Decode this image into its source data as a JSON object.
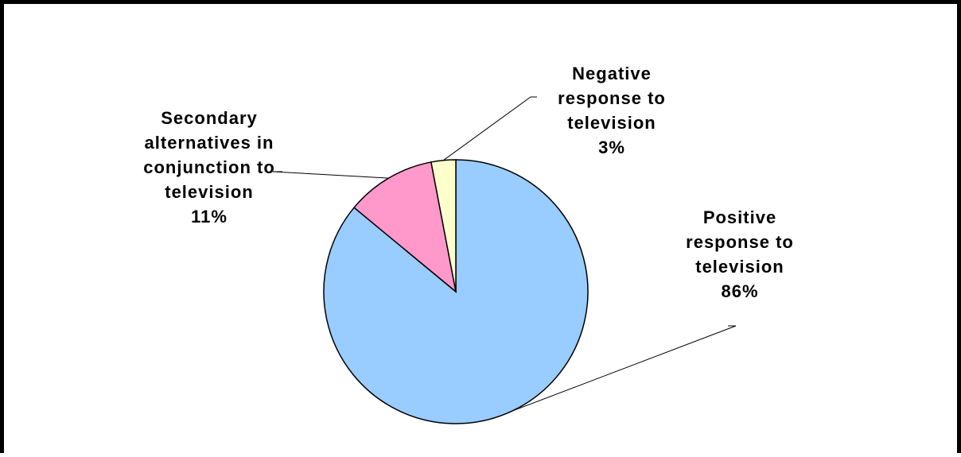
{
  "chart_data": {
    "type": "pie",
    "title": "",
    "slices": [
      {
        "label_lines": [
          "Positive",
          "response to",
          "television"
        ],
        "percent_label": "86%",
        "value": 86,
        "color": "#99ccff"
      },
      {
        "label_lines": [
          "Secondary",
          "alternatives in",
          "conjunction to",
          "television"
        ],
        "percent_label": "11%",
        "value": 11,
        "color": "#ff99cc"
      },
      {
        "label_lines": [
          "Negative",
          "response to",
          "television"
        ],
        "percent_label": "3%",
        "value": 3,
        "color": "#ffffcc"
      }
    ],
    "start_angle_deg": 0,
    "direction": "clockwise",
    "legend": "none",
    "outline_color": "#000000"
  }
}
